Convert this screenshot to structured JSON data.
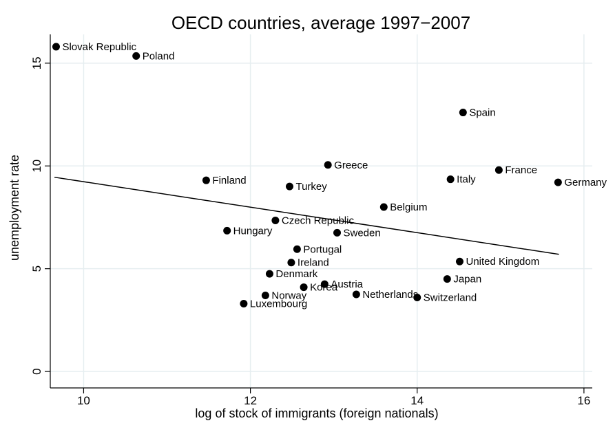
{
  "chart_data": {
    "type": "scatter",
    "title": "OECD countries, average 1997−2007",
    "xlabel": "log of stock of immigrants (foreign nationals)",
    "ylabel": "unemployment rate",
    "xlim": [
      9.6,
      16.1
    ],
    "ylim": [
      -0.8,
      16.4
    ],
    "x_ticks": [
      10,
      12,
      14,
      16
    ],
    "y_ticks": [
      0,
      5,
      10,
      15
    ],
    "grid": true,
    "fit_line": {
      "x": [
        9.65,
        15.7
      ],
      "y": [
        9.45,
        5.7
      ]
    },
    "points": [
      {
        "label": "Slovak Republic",
        "x": 9.67,
        "y": 15.8
      },
      {
        "label": "Poland",
        "x": 10.63,
        "y": 15.35
      },
      {
        "label": "Spain",
        "x": 14.55,
        "y": 12.6
      },
      {
        "label": "Greece",
        "x": 12.93,
        "y": 10.05
      },
      {
        "label": "France",
        "x": 14.98,
        "y": 9.8
      },
      {
        "label": "Finland",
        "x": 11.47,
        "y": 9.3
      },
      {
        "label": "Italy",
        "x": 14.4,
        "y": 9.35
      },
      {
        "label": "Germany",
        "x": 15.69,
        "y": 9.2
      },
      {
        "label": "Turkey",
        "x": 12.47,
        "y": 9.0
      },
      {
        "label": "Belgium",
        "x": 13.6,
        "y": 8.0
      },
      {
        "label": "Czech Republic",
        "x": 12.3,
        "y": 7.35
      },
      {
        "label": "Hungary",
        "x": 11.72,
        "y": 6.85
      },
      {
        "label": "Sweden",
        "x": 13.04,
        "y": 6.75
      },
      {
        "label": "Portugal",
        "x": 12.56,
        "y": 5.95
      },
      {
        "label": "Ireland",
        "x": 12.49,
        "y": 5.3
      },
      {
        "label": "United Kingdom",
        "x": 14.51,
        "y": 5.35
      },
      {
        "label": "Denmark",
        "x": 12.23,
        "y": 4.75
      },
      {
        "label": "Japan",
        "x": 14.36,
        "y": 4.5
      },
      {
        "label": "Austria",
        "x": 12.89,
        "y": 4.25
      },
      {
        "label": "Korea",
        "x": 12.64,
        "y": 4.1
      },
      {
        "label": "Norway",
        "x": 12.18,
        "y": 3.7
      },
      {
        "label": "Netherlands",
        "x": 13.27,
        "y": 3.75
      },
      {
        "label": "Switzerland",
        "x": 14.0,
        "y": 3.6
      },
      {
        "label": "Luxembourg",
        "x": 11.92,
        "y": 3.3
      }
    ]
  }
}
